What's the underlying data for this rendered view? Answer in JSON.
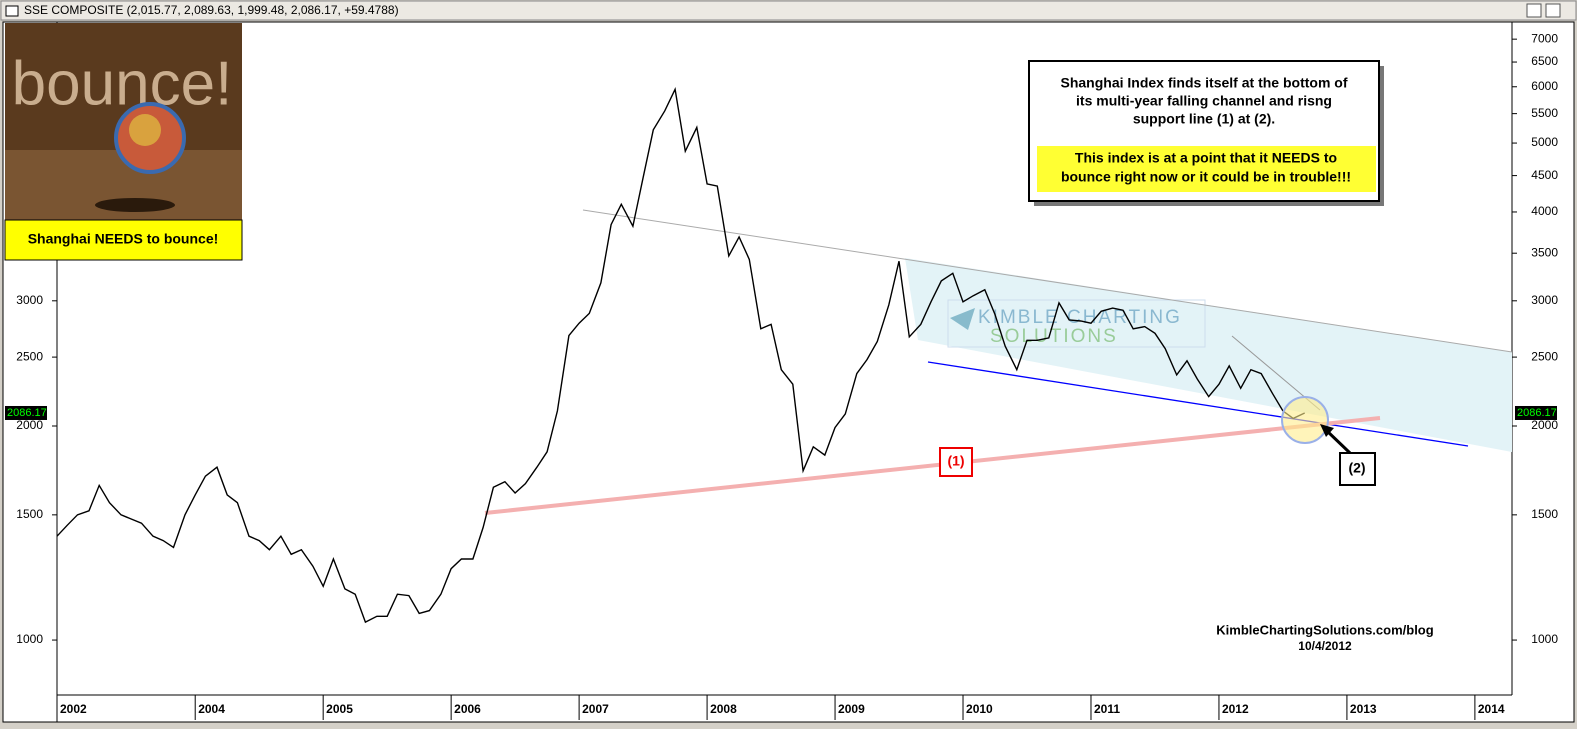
{
  "header": {
    "title": "SSE COMPOSITE (2,015.77, 2,089.63, 1,999.48, 2,086.17, +59.4788)"
  },
  "chart_data": {
    "type": "line",
    "log_y": true,
    "color": "#000000",
    "last_value_label": "2086.17",
    "x": [
      2002.92,
      2003.0,
      2003.08,
      2003.17,
      2003.25,
      2003.33,
      2003.42,
      2003.5,
      2003.58,
      2003.67,
      2003.75,
      2003.83,
      2003.92,
      2004.0,
      2004.08,
      2004.17,
      2004.25,
      2004.33,
      2004.42,
      2004.5,
      2004.58,
      2004.67,
      2004.75,
      2004.83,
      2004.92,
      2005.0,
      2005.08,
      2005.17,
      2005.25,
      2005.33,
      2005.42,
      2005.5,
      2005.58,
      2005.67,
      2005.75,
      2005.83,
      2005.92,
      2006.0,
      2006.08,
      2006.17,
      2006.25,
      2006.33,
      2006.42,
      2006.5,
      2006.58,
      2006.67,
      2006.75,
      2006.83,
      2006.92,
      2007.0,
      2007.08,
      2007.17,
      2007.25,
      2007.33,
      2007.42,
      2007.5,
      2007.58,
      2007.67,
      2007.75,
      2007.83,
      2007.92,
      2008.0,
      2008.08,
      2008.17,
      2008.25,
      2008.33,
      2008.42,
      2008.5,
      2008.58,
      2008.67,
      2008.75,
      2008.83,
      2008.92,
      2009.0,
      2009.08,
      2009.17,
      2009.25,
      2009.33,
      2009.42,
      2009.5,
      2009.58,
      2009.67,
      2009.75,
      2009.83,
      2009.92,
      2010.0,
      2010.08,
      2010.17,
      2010.25,
      2010.33,
      2010.42,
      2010.5,
      2010.58,
      2010.67,
      2010.75,
      2010.83,
      2010.92,
      2011.0,
      2011.08,
      2011.17,
      2011.25,
      2011.33,
      2011.42,
      2011.5,
      2011.58,
      2011.67,
      2011.75,
      2011.83,
      2011.92,
      2012.0,
      2012.08,
      2012.17,
      2012.25,
      2012.33,
      2012.42,
      2012.5,
      2012.58,
      2012.67
    ],
    "values": [
      1400,
      1450,
      1500,
      1520,
      1650,
      1560,
      1500,
      1480,
      1460,
      1400,
      1380,
      1350,
      1500,
      1600,
      1700,
      1750,
      1600,
      1560,
      1400,
      1380,
      1340,
      1400,
      1320,
      1340,
      1270,
      1190,
      1300,
      1180,
      1160,
      1060,
      1080,
      1080,
      1160,
      1155,
      1090,
      1100,
      1160,
      1260,
      1300,
      1300,
      1440,
      1640,
      1670,
      1610,
      1660,
      1750,
      1840,
      2100,
      2680,
      2790,
      2880,
      3180,
      3840,
      4100,
      3820,
      4470,
      5220,
      5550,
      5950,
      4870,
      5260,
      4380,
      4350,
      3470,
      3690,
      3430,
      2740,
      2780,
      2400,
      2290,
      1730,
      1870,
      1820,
      1990,
      2080,
      2370,
      2480,
      2630,
      2960,
      3410,
      2670,
      2780,
      2990,
      3200,
      3280,
      2990,
      3050,
      3110,
      2870,
      2590,
      2400,
      2640,
      2640,
      2660,
      2980,
      2820,
      2810,
      2790,
      2900,
      2930,
      2910,
      2740,
      2760,
      2700,
      2570,
      2360,
      2470,
      2330,
      2200,
      2290,
      2430,
      2260,
      2400,
      2370,
      2220,
      2100,
      2050,
      2086.17
    ],
    "xlim": [
      2002.92,
      2014.29
    ],
    "xticks": [
      {
        "value": 2002.92,
        "label": "2002"
      },
      2004,
      2005,
      2006,
      2007,
      2008,
      2009,
      2010,
      2011,
      2012,
      2013,
      2014
    ],
    "ylim": [
      837,
      7400
    ],
    "yticks": [
      1000,
      1500,
      2000,
      2500,
      3000,
      3500,
      4000,
      4500,
      5000,
      5500,
      6000,
      6500,
      7000
    ],
    "annotations": {
      "image_text": "bounce!",
      "image_caption": "Shanghai NEEDS to bounce!",
      "box_lines": [
        "Shanghai Index finds itself at the bottom of",
        "its multi-year falling channel and risng",
        "support line (1) at (2)."
      ],
      "box_highlight_lines": [
        "This index is at a point that it NEEDS to",
        "bounce right now or it could be in trouble!!!"
      ],
      "label_1": "(1)",
      "label_2": "(2)",
      "watermark_1": "KIMBLE CHARTING",
      "watermark_2": "SOLUTIONS",
      "source": "KimbleChartingSolutions.com/blog",
      "date": "10/4/2012"
    }
  }
}
